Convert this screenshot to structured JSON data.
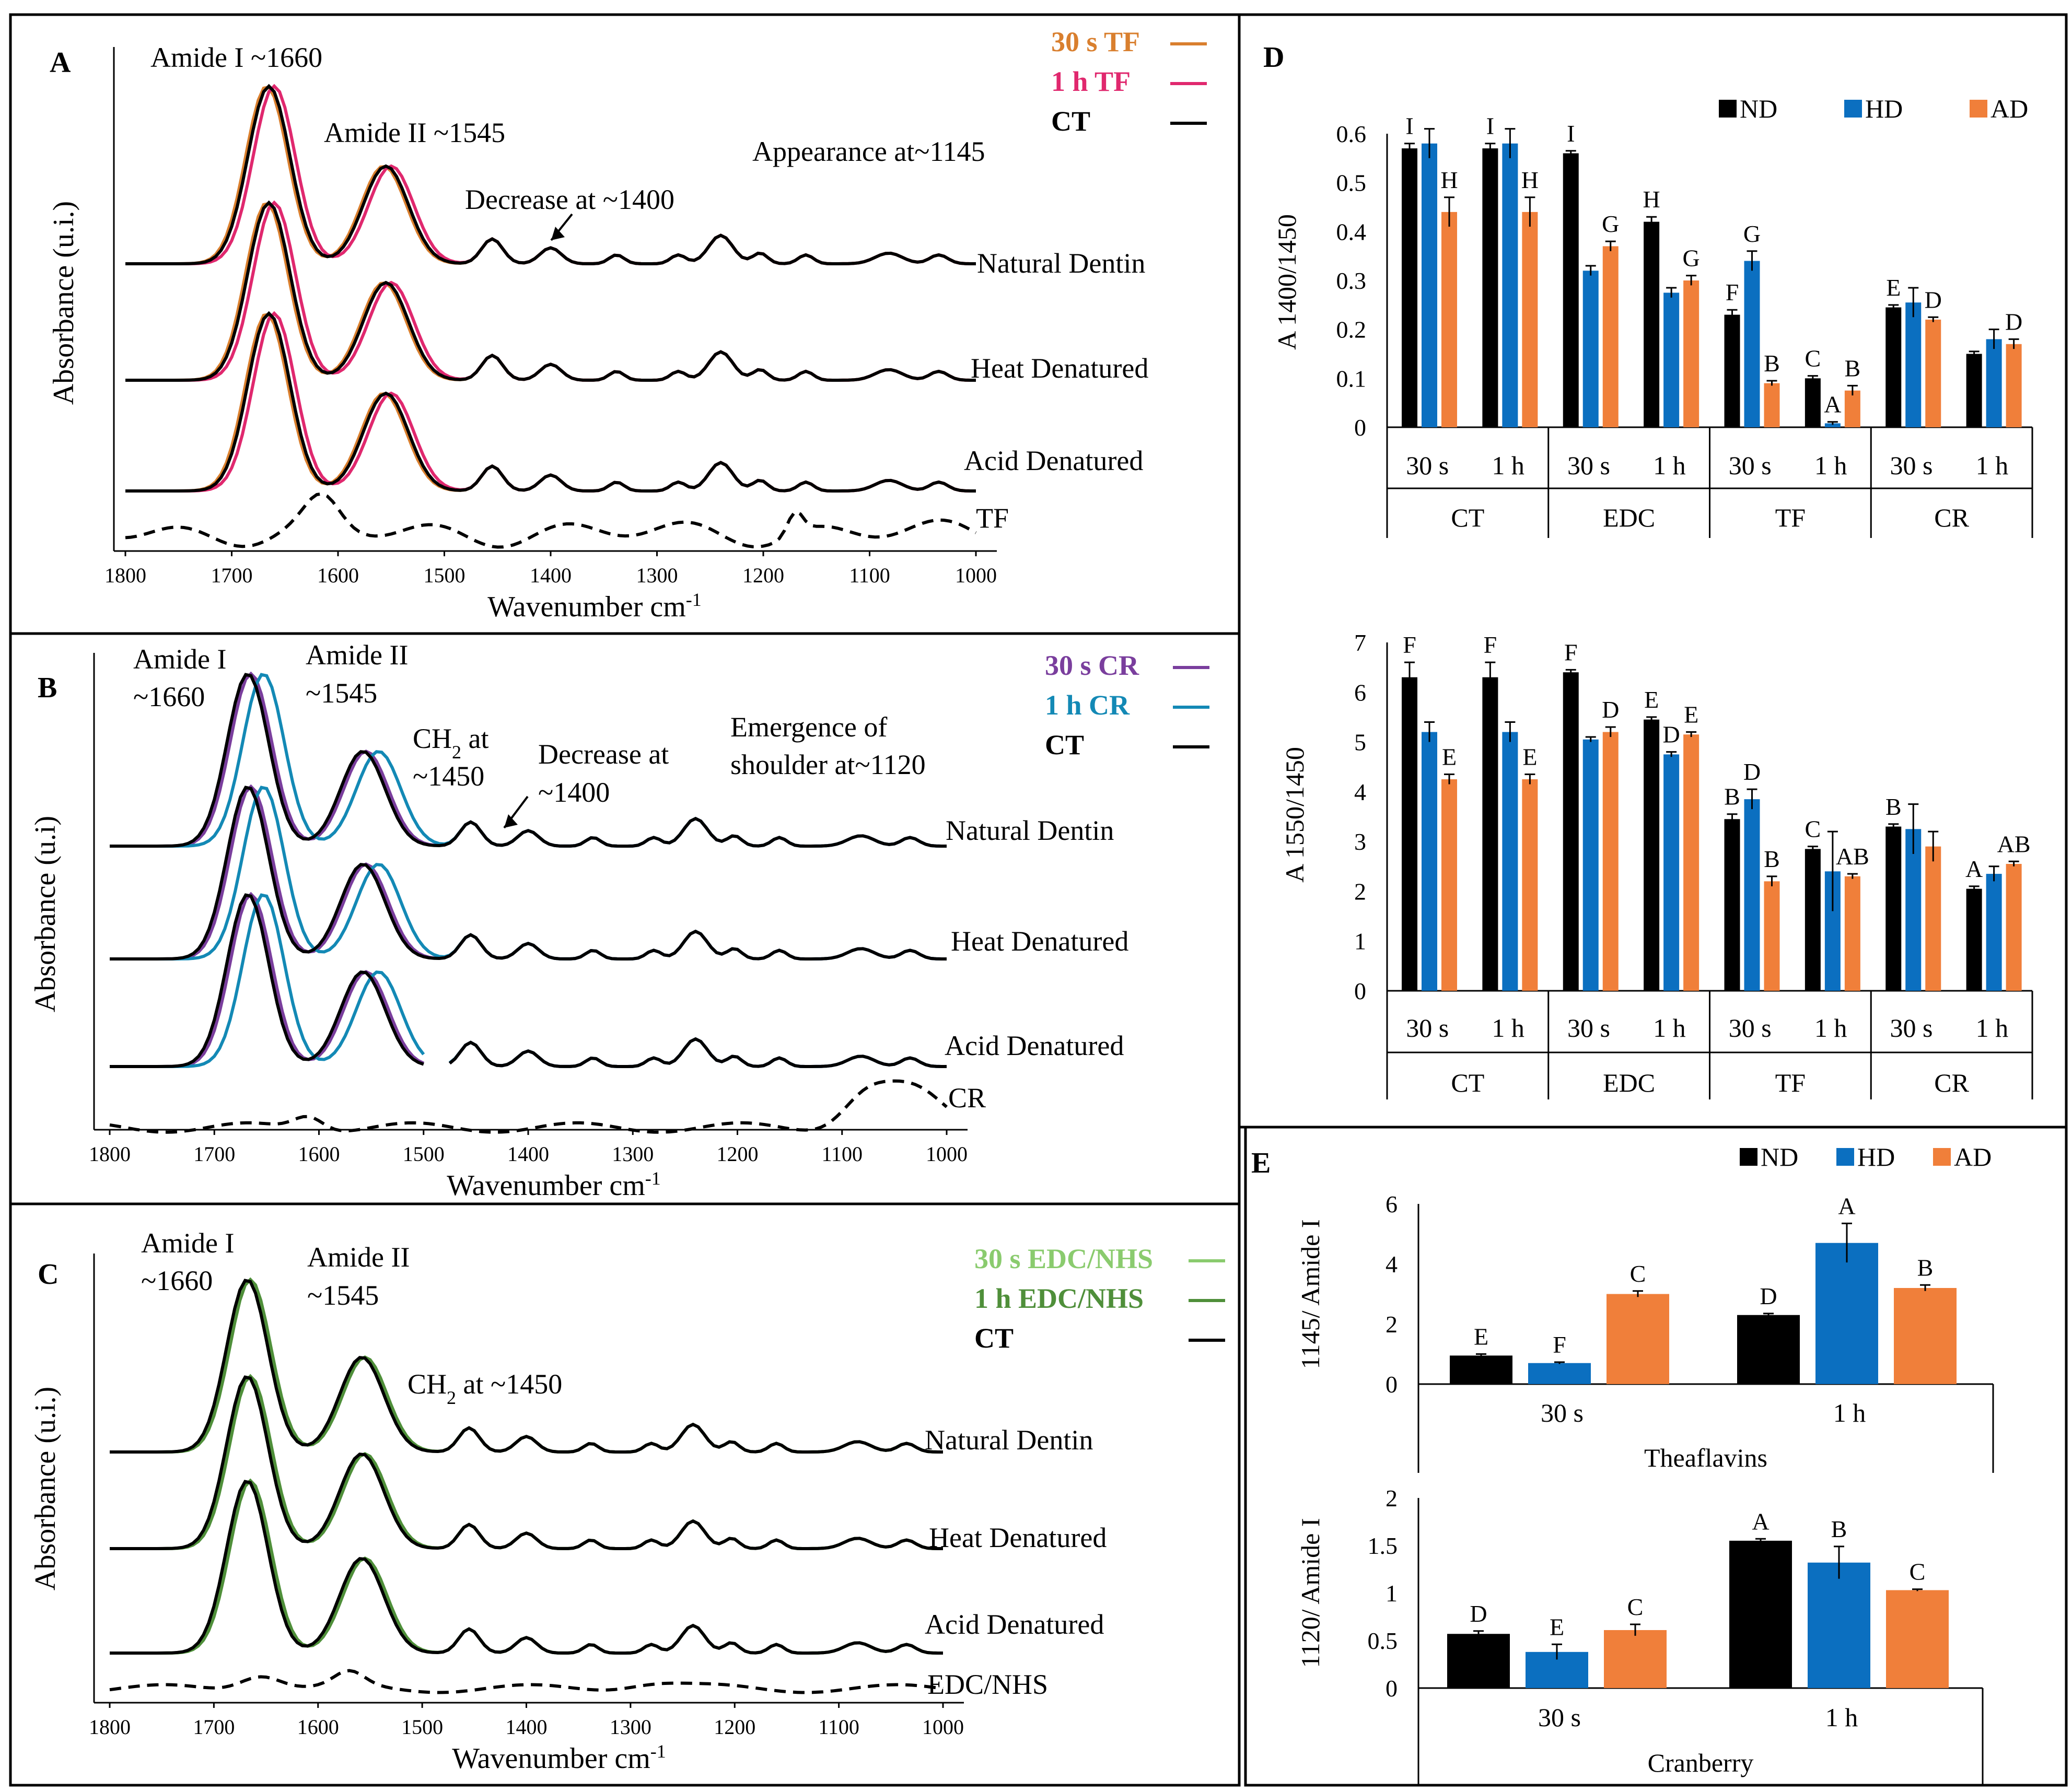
{
  "figure_title": "FTIR spectra of dentin collagen treated with theaflavins, cranberry and EDC/NHS",
  "colors": {
    "tf_30s": "#D97F2E",
    "tf_1h": "#E0286E",
    "ct": "#000000",
    "cr_30s": "#7A3E9D",
    "cr_1h": "#1389B5",
    "edc_30s": "#8ACB6E",
    "edc_1h": "#4F8F3A",
    "nd": "#000000",
    "hd": "#0B6FC0",
    "ad": "#F07F3A"
  },
  "chart_data": [
    {
      "id": "A",
      "type": "line",
      "panel_label": "A",
      "xlabel": "Wavenumber cm",
      "xlabel_sup": "-1",
      "ylabel": "Absorbance (u.i.)",
      "xlim": [
        1800,
        1000
      ],
      "x_ticks": [
        "1800",
        "1700",
        "1600",
        "1500",
        "1400",
        "1300",
        "1200",
        "1100",
        "1000"
      ],
      "legend": [
        {
          "label": "30 s TF",
          "color_key": "tf_30s"
        },
        {
          "label": "1 h TF",
          "color_key": "tf_1h"
        },
        {
          "label": "CT",
          "color_key": "ct"
        }
      ],
      "annotations": [
        "Amide I ~1660",
        "Amide II ~1545",
        "Decrease at ~1400",
        "Appearance at~1145"
      ],
      "spectrum_labels": [
        "Natural Dentin",
        "Heat Denatured",
        "Acid Denatured",
        "TF"
      ],
      "reference_trace": "TF"
    },
    {
      "id": "B",
      "type": "line",
      "panel_label": "B",
      "xlabel": "Wavenumber cm",
      "xlabel_sup": "-1",
      "ylabel": "Absorbance (u.i)",
      "xlim": [
        1800,
        1000
      ],
      "x_ticks": [
        "1800",
        "1700",
        "1600",
        "1500",
        "1400",
        "1300",
        "1200",
        "1100",
        "1000"
      ],
      "legend": [
        {
          "label": "30 s CR",
          "color_key": "cr_30s"
        },
        {
          "label": "1 h CR",
          "color_key": "cr_1h"
        },
        {
          "label": "CT",
          "color_key": "ct"
        }
      ],
      "annotations": [
        "Amide I",
        "~1660",
        "Amide II",
        "~1545",
        "CH",
        "2",
        " at",
        "~1450",
        "Decrease at",
        "~1400",
        "Emergence of",
        "shoulder at~1120"
      ],
      "spectrum_labels": [
        "Natural Dentin",
        "Heat Denatured",
        "Acid Denatured",
        "CR"
      ],
      "reference_trace": "CR"
    },
    {
      "id": "C",
      "type": "line",
      "panel_label": "C",
      "xlabel": "Wavenumber cm",
      "xlabel_sup": "-1",
      "ylabel": "Absorbance (u.i.)",
      "xlim": [
        1800,
        1000
      ],
      "x_ticks": [
        "1800",
        "1700",
        "1600",
        "1500",
        "1400",
        "1300",
        "1200",
        "1100",
        "1000"
      ],
      "legend": [
        {
          "label": "30 s EDC/NHS",
          "color_key": "edc_30s"
        },
        {
          "label": "1 h EDC/NHS",
          "color_key": "edc_1h"
        },
        {
          "label": "CT",
          "color_key": "ct"
        }
      ],
      "annotations": [
        "Amide I",
        "~1660",
        "Amide II",
        "~1545",
        "CH",
        "2",
        " at ~1450"
      ],
      "spectrum_labels": [
        "Natural Dentin",
        "Heat Denatured",
        "Acid Denatured",
        "EDC/NHS"
      ],
      "reference_trace": "EDC/NHS"
    },
    {
      "id": "D-top",
      "type": "bar",
      "panel_label": "D",
      "ylabel": "A 1400/1450",
      "ylim": [
        0,
        0.6
      ],
      "y_ticks": [
        "0",
        "0.1",
        "0.2",
        "0.3",
        "0.4",
        "0.5",
        "0.6"
      ],
      "legend": [
        "ND",
        "HD",
        "AD"
      ],
      "groups": [
        "CT",
        "EDC",
        "TF",
        "CR"
      ],
      "categories": [
        "30 s",
        "1 h",
        "30 s",
        "1 h",
        "30 s",
        "1 h",
        "30 s",
        "1 h"
      ],
      "series": [
        {
          "name": "ND",
          "values": [
            0.57,
            0.57,
            0.56,
            0.42,
            0.23,
            0.1,
            0.245,
            0.15
          ],
          "errors": [
            0.01,
            0.01,
            0.005,
            0.01,
            0.01,
            0.005,
            0.005,
            0.005
          ],
          "letters": [
            "I",
            "I",
            "I",
            "H",
            "F",
            "C",
            "E",
            ""
          ]
        },
        {
          "name": "HD",
          "values": [
            0.58,
            0.58,
            0.32,
            0.275,
            0.34,
            0.008,
            0.255,
            0.18
          ],
          "errors": [
            0.03,
            0.03,
            0.01,
            0.01,
            0.02,
            0.003,
            0.03,
            0.02
          ],
          "letters": [
            "",
            "",
            "",
            "",
            "G",
            "A",
            "",
            ""
          ]
        },
        {
          "name": "AD",
          "values": [
            0.44,
            0.44,
            0.37,
            0.3,
            0.09,
            0.075,
            0.22,
            0.17
          ],
          "errors": [
            0.03,
            0.03,
            0.01,
            0.01,
            0.005,
            0.01,
            0.005,
            0.01
          ],
          "letters": [
            "H",
            "H",
            "G",
            "G",
            "B",
            "B",
            "D",
            "D"
          ]
        }
      ]
    },
    {
      "id": "D-bottom",
      "type": "bar",
      "ylabel": "A 1550/1450",
      "ylim": [
        0,
        7
      ],
      "y_ticks": [
        "0",
        "1",
        "2",
        "3",
        "4",
        "5",
        "6",
        "7"
      ],
      "groups": [
        "CT",
        "EDC",
        "TF",
        "CR"
      ],
      "categories": [
        "30 s",
        "1 h",
        "30 s",
        "1 h",
        "30 s",
        "1 h",
        "30 s",
        "1 h"
      ],
      "series": [
        {
          "name": "ND",
          "values": [
            6.3,
            6.3,
            6.4,
            5.45,
            3.45,
            2.85,
            3.3,
            2.05
          ],
          "errors": [
            0.3,
            0.3,
            0.05,
            0.05,
            0.1,
            0.05,
            0.05,
            0.05
          ],
          "letters": [
            "F",
            "F",
            "F",
            "E",
            "B",
            "C",
            "B",
            "A"
          ]
        },
        {
          "name": "HD",
          "values": [
            5.2,
            5.2,
            5.05,
            4.75,
            3.85,
            2.4,
            3.25,
            2.35
          ],
          "errors": [
            0.2,
            0.2,
            0.05,
            0.05,
            0.2,
            0.8,
            0.5,
            0.15
          ],
          "letters": [
            "",
            "",
            "",
            "D",
            "D",
            "",
            "",
            ""
          ]
        },
        {
          "name": "AD",
          "values": [
            4.25,
            4.25,
            5.2,
            5.15,
            2.2,
            2.3,
            2.9,
            2.55
          ],
          "errors": [
            0.1,
            0.1,
            0.1,
            0.05,
            0.1,
            0.05,
            0.3,
            0.05
          ],
          "letters": [
            "E",
            "E",
            "D",
            "E",
            "B",
            "AB",
            "",
            "AB"
          ]
        }
      ]
    },
    {
      "id": "E-top",
      "type": "bar",
      "panel_label": "E",
      "ylabel": "1145/ Amide I",
      "ylim": [
        0,
        6
      ],
      "y_ticks": [
        "0",
        "2",
        "4",
        "6"
      ],
      "legend": [
        "ND",
        "HD",
        "AD"
      ],
      "group_title": "Theaflavins",
      "categories": [
        "30 s",
        "1 h"
      ],
      "series": [
        {
          "name": "ND",
          "values": [
            0.95,
            2.3
          ],
          "errors": [
            0.05,
            0.05
          ],
          "letters": [
            "E",
            "D"
          ]
        },
        {
          "name": "HD",
          "values": [
            0.7,
            4.7
          ],
          "errors": [
            0.03,
            0.65
          ],
          "letters": [
            "F",
            "A"
          ]
        },
        {
          "name": "AD",
          "values": [
            3.0,
            3.2
          ],
          "errors": [
            0.1,
            0.1
          ],
          "letters": [
            "C",
            "B"
          ]
        }
      ]
    },
    {
      "id": "E-bottom",
      "type": "bar",
      "ylabel": "1120/ Amide I",
      "ylim": [
        0,
        2
      ],
      "y_ticks": [
        "0",
        "0.5",
        "1",
        "1.5",
        "2"
      ],
      "group_title": "Cranberry",
      "categories": [
        "30 s",
        "1 h"
      ],
      "series": [
        {
          "name": "ND",
          "values": [
            0.57,
            1.55
          ],
          "errors": [
            0.03,
            0.02
          ],
          "letters": [
            "D",
            "A"
          ]
        },
        {
          "name": "HD",
          "values": [
            0.38,
            1.32
          ],
          "errors": [
            0.08,
            0.17
          ],
          "letters": [
            "E",
            "B"
          ]
        },
        {
          "name": "AD",
          "values": [
            0.61,
            1.03
          ],
          "errors": [
            0.06,
            0.01
          ],
          "letters": [
            "C",
            "C"
          ]
        }
      ]
    }
  ]
}
